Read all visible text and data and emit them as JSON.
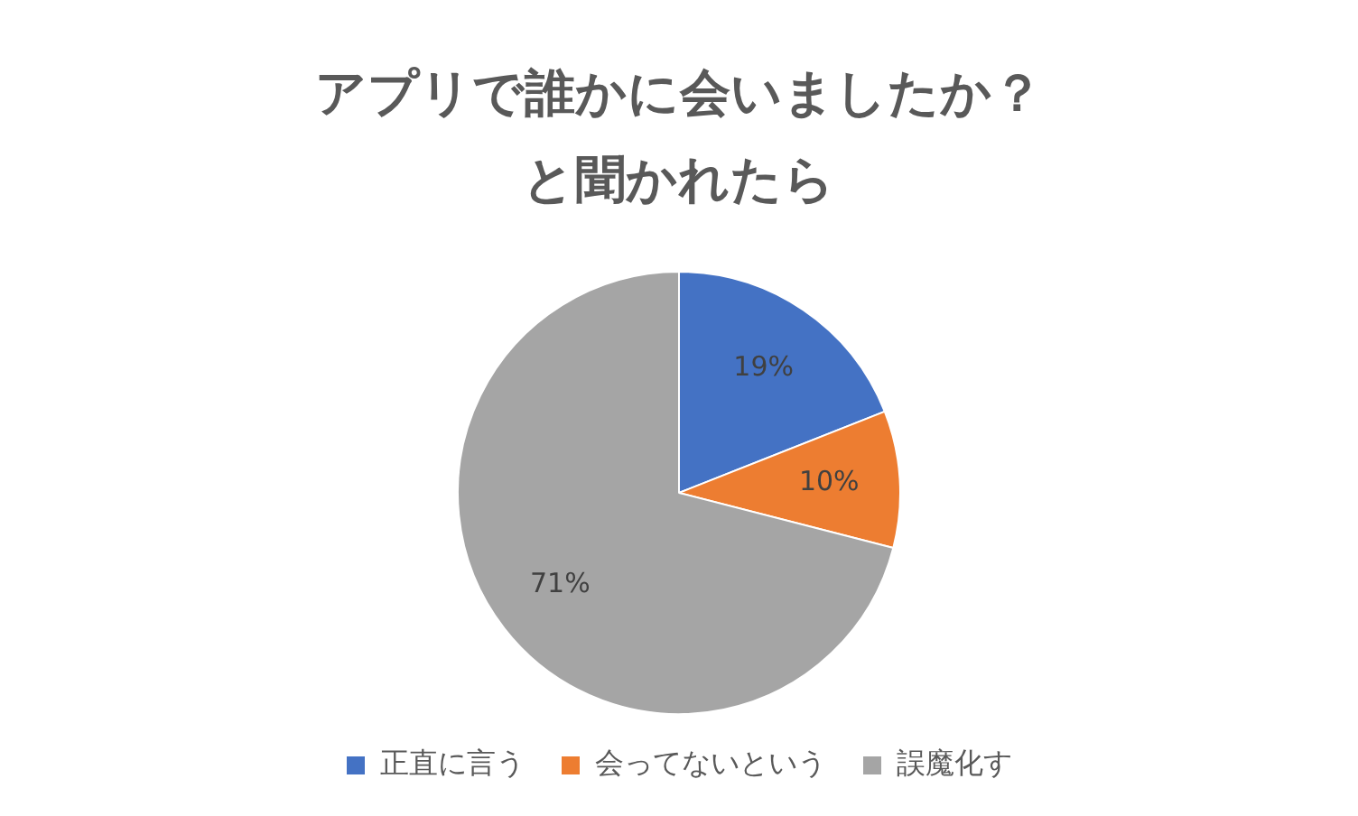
{
  "chart_data": {
    "type": "pie",
    "title": "アプリで誰かに会いましたか？と聞かれたら",
    "categories": [
      "正直に言う",
      "会ってないという",
      "誤魔化す"
    ],
    "values": [
      19,
      10,
      71
    ],
    "colors": [
      "#4472c4",
      "#ed7d31",
      "#a5a5a5"
    ],
    "value_labels": [
      "19%",
      "10%",
      "71%"
    ],
    "legend": "bottom"
  }
}
